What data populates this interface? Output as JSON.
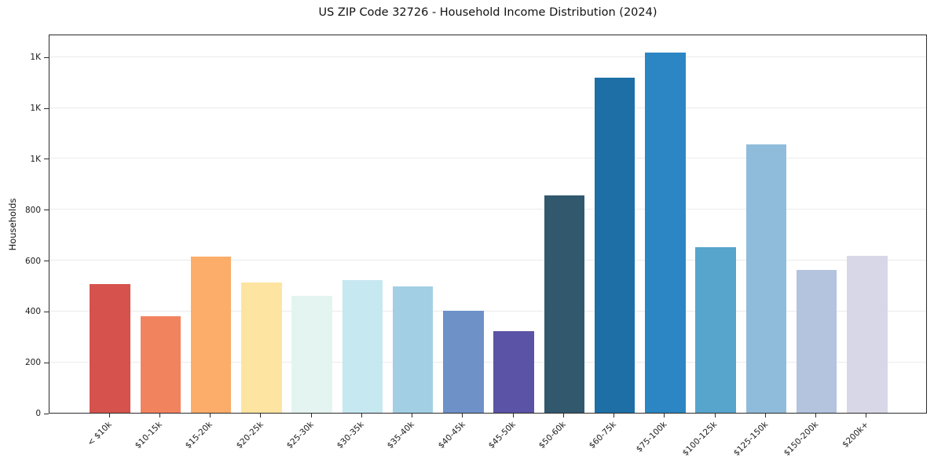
{
  "title": "US ZIP Code 32726 - Household Income Distribution (2024)",
  "chart_data": {
    "type": "bar",
    "title": "US ZIP Code 32726 - Household Income Distribution (2024)",
    "xlabel": "",
    "ylabel": "Households",
    "categories": [
      "< $10k",
      "$10-15k",
      "$15-20k",
      "$20-25k",
      "$25-30k",
      "$30-35k",
      "$35-40k",
      "$40-45k",
      "$45-50k",
      "$50-60k",
      "$60-75k",
      "$75-100k",
      "$100-125k",
      "$125-150k",
      "$150-200k",
      "$200k+"
    ],
    "values": [
      505,
      380,
      615,
      512,
      460,
      520,
      498,
      400,
      320,
      855,
      1318,
      1415,
      650,
      1055,
      560,
      618
    ],
    "bar_colors": [
      "#d6524c",
      "#f1835f",
      "#fbad69",
      "#fde4a0",
      "#e4f4f0",
      "#c6e8f1",
      "#a3cfe4",
      "#6e91c8",
      "#5b53a5",
      "#32586e",
      "#1d6fa5",
      "#2c86c3",
      "#57a4cc",
      "#90bcdb",
      "#b4c3de",
      "#d8d7e8"
    ],
    "ylim": [
      0,
      1490
    ],
    "yticks": [
      0,
      200,
      400,
      600,
      800,
      1000,
      1200,
      1400
    ],
    "ytick_labels": [
      "0",
      "200",
      "400",
      "600",
      "800",
      "1K",
      "1K",
      "1K"
    ],
    "grid": true,
    "legend": false
  }
}
